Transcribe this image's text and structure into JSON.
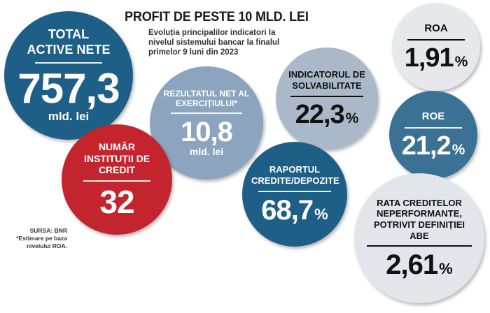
{
  "headline": "PROFIT DE PESTE 10 MLD. LEI",
  "subtitle": "Evoluția principalilor indicatori la nivelul sistemului bancar la finalul primelor 9 luni din 2023",
  "colors": {
    "dark_blue": "#1e5f87",
    "red": "#c4242d",
    "steel_blue": "#8ca4bd",
    "light_steel": "#aab9c9",
    "pale_gray": "#e6e8ec",
    "mid_blue": "#3a7195"
  },
  "indicators": {
    "active": {
      "label": "TOTAL ACTIVE NETE",
      "value": "757,3",
      "unit": "mld. lei"
    },
    "institutions": {
      "label": "NUMĂR INSTITUȚII DE CREDIT",
      "value": "32"
    },
    "net_result": {
      "label": "REZULTATUL NET AL EXERCIȚIULUI*",
      "value": "10,8",
      "unit": "mld. lei"
    },
    "solvency": {
      "label": "INDICATORUL DE SOLVABILITATE",
      "value": "22,3",
      "unit": "%"
    },
    "loans_deposits": {
      "label": "RAPORTUL CREDITE/DEPOZITE",
      "value": "68,7",
      "unit": "%"
    },
    "roa": {
      "label": "ROA",
      "value": "1,91",
      "unit": "%"
    },
    "roe": {
      "label": "ROE",
      "value": "21,2",
      "unit": "%"
    },
    "npl": {
      "label": "RATA CREDITELOR NEPERFORMANTE, POTRIVIT DEFINIȚIEI ABE",
      "value": "2,61",
      "unit": "%"
    }
  },
  "source": {
    "label": "SURSA:",
    "name": "BNR",
    "note": "*Estimare pe baza nivelului ROA."
  },
  "chart_data": {
    "type": "table",
    "title": "PROFIT DE PESTE 10 MLD. LEI",
    "subtitle": "Evoluția principalilor indicatori la nivelul sistemului bancar la finalul primelor 9 luni din 2023",
    "rows": [
      {
        "indicator": "TOTAL ACTIVE NETE",
        "value": 757.3,
        "unit": "mld. lei"
      },
      {
        "indicator": "NUMĂR INSTITUȚII DE CREDIT",
        "value": 32,
        "unit": ""
      },
      {
        "indicator": "REZULTATUL NET AL EXERCIȚIULUI*",
        "value": 10.8,
        "unit": "mld. lei"
      },
      {
        "indicator": "INDICATORUL DE SOLVABILITATE",
        "value": 22.3,
        "unit": "%"
      },
      {
        "indicator": "RAPORTUL CREDITE/DEPOZITE",
        "value": 68.7,
        "unit": "%"
      },
      {
        "indicator": "ROA",
        "value": 1.91,
        "unit": "%"
      },
      {
        "indicator": "ROE",
        "value": 21.2,
        "unit": "%"
      },
      {
        "indicator": "RATA CREDITELOR NEPERFORMANTE, POTRIVIT DEFINIȚIEI ABE",
        "value": 2.61,
        "unit": "%"
      }
    ]
  }
}
